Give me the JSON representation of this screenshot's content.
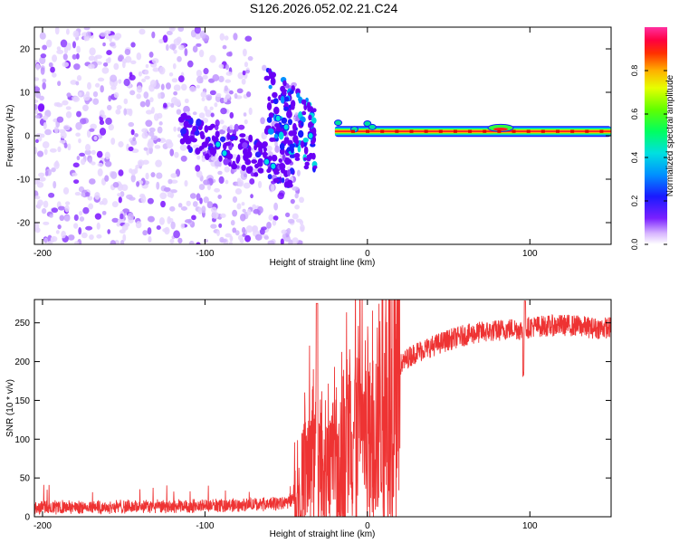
{
  "title": "S126.2026.052.02.21.C24",
  "chart_data": [
    {
      "type": "heatmap",
      "name": "spectrogram",
      "xlabel": "Height of straight line (km)",
      "ylabel": "Frequency (Hz)",
      "xlim": [
        -205,
        150
      ],
      "ylim": [
        -25,
        25
      ],
      "xticks": [
        -200,
        -100,
        0,
        100
      ],
      "yticks": [
        -20,
        -10,
        0,
        10,
        20
      ],
      "colorbar": {
        "label": "Normalized spectral amplitude",
        "range": [
          0,
          1
        ],
        "ticks": [
          0.0,
          0.2,
          0.4,
          0.6,
          0.8
        ],
        "tick_labels": [
          "0.0",
          "0.2",
          "0.4",
          "0.6",
          "0.8"
        ],
        "colormap": "rainbow (white-purple-blue-cyan-green-yellow-red-magenta)"
      },
      "features": {
        "noise_region_km": [
          -205,
          -40
        ],
        "transition_km": [
          -60,
          -20
        ],
        "carrier_line_km": [
          -20,
          150
        ],
        "carrier_frequency_hz": 1
      }
    },
    {
      "type": "line",
      "name": "snr",
      "xlabel": "Height of straight line (km)",
      "ylabel": "SNR (10 * v/v)",
      "xlim": [
        -205,
        150
      ],
      "ylim": [
        0,
        280
      ],
      "xticks": [
        -200,
        -100,
        0,
        100
      ],
      "yticks": [
        0,
        50,
        100,
        150,
        200,
        250
      ],
      "color": "#ee3333",
      "series": [
        {
          "name": "SNR",
          "x": [
            -205,
            -180,
            -150,
            -120,
            -100,
            -80,
            -60,
            -50,
            -45,
            -40,
            -35,
            -30,
            -25,
            -20,
            -15,
            -10,
            -5,
            0,
            5,
            10,
            15,
            20,
            25,
            30,
            40,
            50,
            60,
            70,
            80,
            90,
            96,
            100,
            110,
            120,
            130,
            140,
            150
          ],
          "y": [
            12,
            12,
            13,
            13,
            14,
            15,
            16,
            18,
            25,
            45,
            80,
            60,
            55,
            70,
            95,
            110,
            120,
            90,
            110,
            150,
            185,
            195,
            205,
            212,
            220,
            228,
            234,
            238,
            240,
            243,
            240,
            245,
            246,
            247,
            246,
            243,
            244
          ]
        }
      ],
      "annotations": [
        {
          "x": -31,
          "y": 275,
          "note": "spike"
        },
        {
          "x": 96,
          "y": 180,
          "note": "dip"
        }
      ]
    }
  ]
}
